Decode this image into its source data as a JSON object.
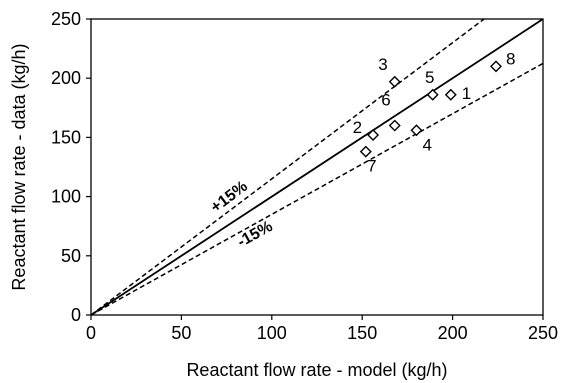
{
  "chart_data": {
    "type": "scatter",
    "xlabel": "Reactant flow rate - model (kg/h)",
    "ylabel": "Reactant flow rate - data (kg/h)",
    "xlim": [
      0,
      250
    ],
    "ylim": [
      0,
      250
    ],
    "x_ticks": [
      "0",
      "50",
      "100",
      "150",
      "200",
      "250"
    ],
    "y_ticks": [
      "0",
      "50",
      "100",
      "150",
      "200",
      "250"
    ],
    "grid": false,
    "marker": "diamond",
    "points": [
      {
        "label": "1",
        "x": 199,
        "y": 186
      },
      {
        "label": "2",
        "x": 156,
        "y": 152
      },
      {
        "label": "3",
        "x": 168,
        "y": 197
      },
      {
        "label": "4",
        "x": 180,
        "y": 156
      },
      {
        "label": "5",
        "x": 189,
        "y": 186
      },
      {
        "label": "6",
        "x": 168,
        "y": 160
      },
      {
        "label": "7",
        "x": 152,
        "y": 138
      },
      {
        "label": "8",
        "x": 224,
        "y": 210
      }
    ],
    "reference_lines": [
      {
        "kind": "parity",
        "slope": 1.0,
        "style": "solid",
        "label": ""
      },
      {
        "kind": "upper",
        "slope": 1.15,
        "style": "dashed",
        "label": "+15%"
      },
      {
        "kind": "lower",
        "slope": 0.85,
        "style": "dashed",
        "label": "-15%"
      }
    ]
  }
}
